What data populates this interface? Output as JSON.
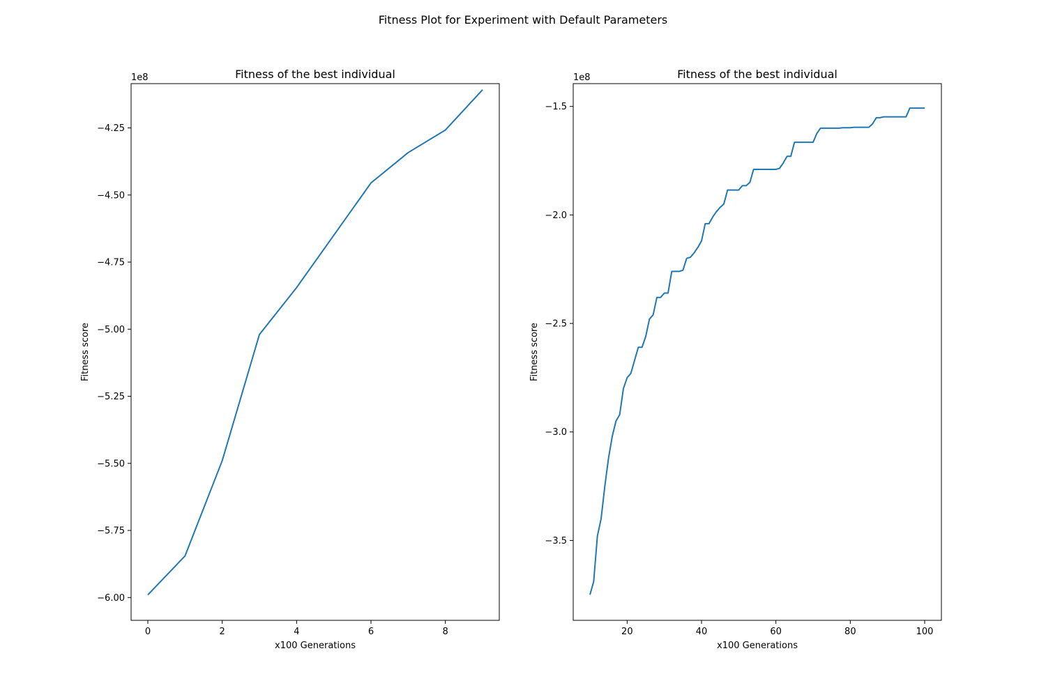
{
  "figure": {
    "suptitle": "Fitness Plot for Experiment with Default Parameters"
  },
  "colors": {
    "line": "#1f77b4",
    "axes": "#000000",
    "background": "#ffffff"
  },
  "chart_data": [
    {
      "type": "line",
      "title": "Fitness of the best individual",
      "xlabel": "x100 Generations",
      "ylabel": "Fitness score",
      "y_offset_label": "1e8",
      "xlim": [
        -0.45,
        9.45
      ],
      "ylim": [
        -6.085,
        -4.085
      ],
      "xticks": [
        0,
        2,
        4,
        6,
        8
      ],
      "yticks": [
        -6.0,
        -5.75,
        -5.5,
        -5.25,
        -5.0,
        -4.75,
        -4.5,
        -4.25
      ],
      "ytick_labels": [
        "−6.00",
        "−5.75",
        "−5.50",
        "−5.25",
        "−5.00",
        "−4.75",
        "−4.50",
        "−4.25"
      ],
      "grid": false,
      "series": [
        {
          "x": [
            0,
            1,
            2,
            3,
            4,
            5,
            6,
            7,
            8,
            9
          ],
          "y": [
            -5.99,
            -5.845,
            -5.49,
            -5.02,
            -4.845,
            -4.65,
            -4.455,
            -4.342,
            -4.258,
            -4.108
          ]
        }
      ]
    },
    {
      "type": "line",
      "title": "Fitness of the best individual",
      "xlabel": "x100 Generations",
      "ylabel": "Fitness score",
      "y_offset_label": "1e8",
      "xlim": [
        5.5,
        104.5
      ],
      "ylim": [
        -3.868,
        -1.395
      ],
      "xticks": [
        20,
        40,
        60,
        80,
        100
      ],
      "yticks": [
        -3.5,
        -3.0,
        -2.5,
        -2.0,
        -1.5
      ],
      "ytick_labels": [
        "−3.5",
        "−3.0",
        "−2.5",
        "−2.0",
        "−1.5"
      ],
      "grid": false,
      "series": [
        {
          "x": [
            10,
            11,
            12,
            13,
            14,
            15,
            16,
            17,
            18,
            19,
            20,
            21,
            22,
            23,
            24,
            25,
            26,
            27,
            28,
            29,
            30,
            31,
            32,
            33,
            34,
            35,
            36,
            37,
            38,
            39,
            40,
            41,
            42,
            43,
            44,
            45,
            46,
            47,
            48,
            49,
            50,
            51,
            52,
            53,
            54,
            55,
            56,
            57,
            58,
            59,
            60,
            61,
            62,
            63,
            64,
            65,
            66,
            67,
            68,
            69,
            70,
            71,
            72,
            73,
            74,
            75,
            76,
            77,
            78,
            79,
            80,
            81,
            82,
            83,
            84,
            85,
            86,
            87,
            88,
            89,
            90,
            91,
            92,
            93,
            94,
            95,
            96,
            97,
            98,
            99,
            100
          ],
          "y": [
            -3.75,
            -3.69,
            -3.48,
            -3.4,
            -3.25,
            -3.12,
            -3.02,
            -2.95,
            -2.92,
            -2.8,
            -2.75,
            -2.73,
            -2.67,
            -2.61,
            -2.61,
            -2.56,
            -2.48,
            -2.46,
            -2.38,
            -2.38,
            -2.36,
            -2.36,
            -2.26,
            -2.26,
            -2.26,
            -2.255,
            -2.2,
            -2.195,
            -2.175,
            -2.15,
            -2.12,
            -2.04,
            -2.04,
            -2.01,
            -1.985,
            -1.965,
            -1.95,
            -1.885,
            -1.885,
            -1.885,
            -1.885,
            -1.865,
            -1.865,
            -1.85,
            -1.79,
            -1.79,
            -1.79,
            -1.79,
            -1.79,
            -1.79,
            -1.79,
            -1.785,
            -1.76,
            -1.73,
            -1.73,
            -1.665,
            -1.665,
            -1.665,
            -1.665,
            -1.665,
            -1.665,
            -1.625,
            -1.6,
            -1.6,
            -1.6,
            -1.6,
            -1.6,
            -1.6,
            -1.598,
            -1.598,
            -1.598,
            -1.596,
            -1.596,
            -1.596,
            -1.596,
            -1.596,
            -1.58,
            -1.552,
            -1.552,
            -1.548,
            -1.548,
            -1.548,
            -1.548,
            -1.548,
            -1.548,
            -1.548,
            -1.508,
            -1.508,
            -1.508,
            -1.508,
            -1.508
          ]
        }
      ]
    }
  ]
}
